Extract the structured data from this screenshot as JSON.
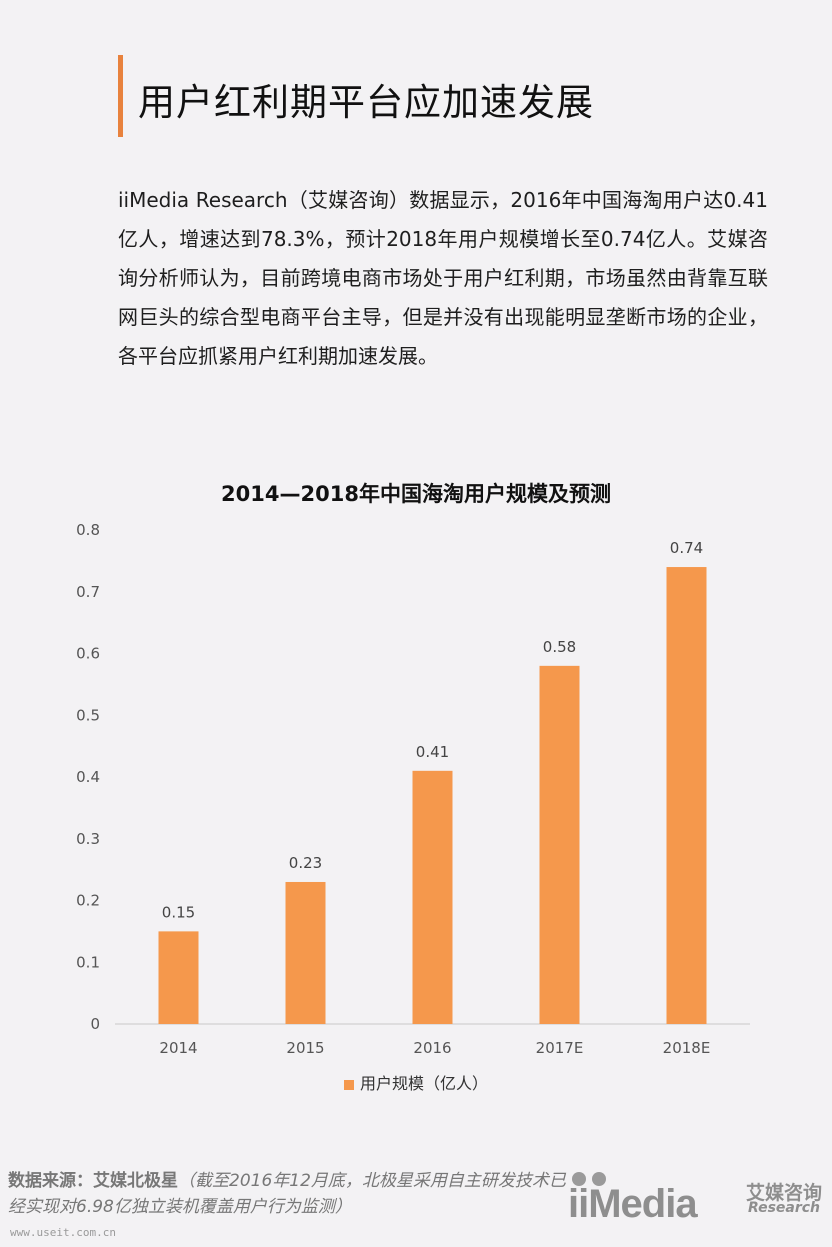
{
  "header": {
    "title": "用户红利期平台应加速发展"
  },
  "body": {
    "paragraph": "iiMedia Research（艾媒咨询）数据显示，2016年中国海淘用户达0.41亿人，增速达到78.3%，预计2018年用户规模增长至0.74亿人。艾媒咨询分析师认为，目前跨境电商市场处于用户红利期，市场虽然由背靠互联网巨头的综合型电商平台主导，但是并没有出现能明显垄断市场的企业，各平台应抓紧用户红利期加速发展。"
  },
  "chart_data": {
    "type": "bar",
    "title": "2014—2018年中国海淘用户规模及预测",
    "categories": [
      "2014",
      "2015",
      "2016",
      "2017E",
      "2018E"
    ],
    "series": [
      {
        "name": "用户规模（亿人）",
        "values": [
          0.15,
          0.23,
          0.41,
          0.58,
          0.74
        ],
        "color": "#f5984c"
      }
    ],
    "data_labels": [
      "0.15",
      "0.23",
      "0.41",
      "0.58",
      "0.74"
    ],
    "ylim": [
      0,
      0.8
    ],
    "yticks": [
      "0",
      "0.1",
      "0.2",
      "0.3",
      "0.4",
      "0.5",
      "0.6",
      "0.7",
      "0.8"
    ],
    "xlabel": "",
    "ylabel": "",
    "grid": false,
    "legend": "bottom"
  },
  "footer": {
    "source_label": "数据来源：艾媒北极星",
    "source_note": "（截至2016年12月底，北极星采用自主研发技术已经实现对6.98亿独立装机覆盖用户行为监测）",
    "url": "www.useit.com.cn",
    "logo_word": "iiMedia",
    "logo_cn": "艾媒咨询",
    "logo_en": "Research"
  }
}
